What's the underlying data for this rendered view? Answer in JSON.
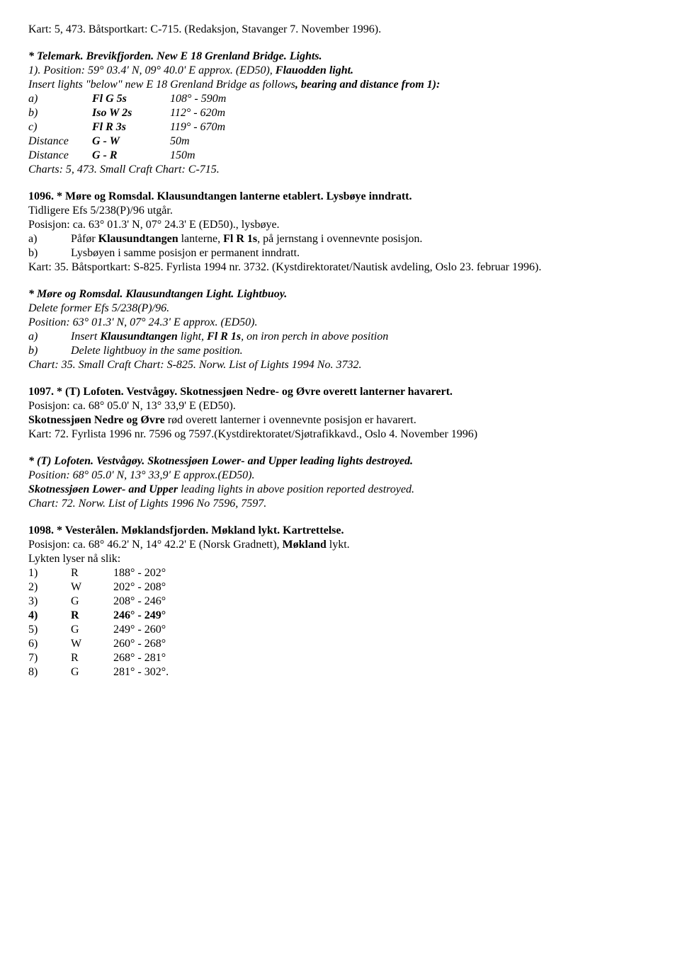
{
  "p1": "Kart: 5, 473. Båtsportkart: C-715. (Redaksjon, Stavanger 7. November 1996).",
  "p2_a": "* Telemark. Brevikfjorden. New E 18 Grenland Bridge. Lights.",
  "p2_b": "1). Position: 59° 03.4' N, 09° 40.0' E approx. (ED50), ",
  "p2_c": "Flauodden light.",
  "p2_d": "Insert lights \"below\" new E 18 Grenland Bridge as follows",
  "p2_e": ", bearing and distance from 1):",
  "t1": {
    "r1": {
      "a": "a)",
      "b": "Fl G 5s",
      "c": "108° - 590m"
    },
    "r2": {
      "a": "b)",
      "b": "Iso W 2s",
      "c": "112° - 620m"
    },
    "r3": {
      "a": "c)",
      "b": "Fl R 3s",
      "c": "119° - 670m"
    },
    "r4": {
      "a": "Distance",
      "b": "G - W",
      "c": "50m"
    },
    "r5": {
      "a": "Distance",
      "b": "G - R",
      "c": "150m"
    }
  },
  "p2_f": "Charts: 5, 473. Small Craft Chart: C-715.",
  "p3_a": "1096. * Møre og Romsdal. Klausundtangen lanterne etablert. Lysbøye inndratt.",
  "p3_b": "Tidligere Efs 5/238(P)/96 utgår.",
  "p3_c": "Posisjon: ca. 63° 01.3' N, 07° 24.3' E (ED50)., lysbøye.",
  "p3_d_a": "a)",
  "p3_d_b1": "Påfør ",
  "p3_d_b2": "Klausundtangen",
  "p3_d_b3": " lanterne, ",
  "p3_d_b4": "Fl R 1s",
  "p3_d_b5": ", på jernstang i ovennevnte posisjon.",
  "p3_e_a": "b)",
  "p3_e_b": "Lysbøyen i samme posisjon er permanent inndratt.",
  "p3_f": "Kart: 35. Båtsportkart: S-825. Fyrlista 1994 nr. 3732. (Kystdirektoratet/Nautisk avdeling, Oslo 23. februar 1996).",
  "p4_a": "* Møre og Romsdal. Klausundtangen Light. Lightbuoy.",
  "p4_b": "Delete former Efs 5/238(P)/96.",
  "p4_c": "Position: 63° 01.3' N, 07° 24.3' E approx. (ED50).",
  "p4_d_a": "a)",
  "p4_d_b1": "Insert ",
  "p4_d_b2": "Klausundtangen",
  "p4_d_b3": " light, ",
  "p4_d_b4": "Fl R 1s",
  "p4_d_b5": ",  on iron perch in above position",
  "p4_e_a": "b)",
  "p4_e_b": "Delete lightbuoy in the same position.",
  "p4_f": "Chart: 35. Small Craft Chart: S-825. Norw. List of Lights 1994 No. 3732.",
  "p5_a": " 1097. * (T) Lofoten. Vestvågøy. Skotnessjøen Nedre- og Øvre overett lanterner havarert.",
  "p5_b": " Posisjon: ca. 68° 05.0' N, 13° 33,9' E (ED50).",
  "p5_c1": " ",
  "p5_c2": "Skotnessjøen Nedre og Øvre",
  "p5_c3": " rød overett lanterner i ovennevnte posisjon er havarert.",
  "p5_d": " Kart: 72. Fyrlista 1996 nr. 7596 og 7597.(Kystdirektoratet/Sjøtrafikkavd., Oslo 4. November 1996)",
  "p6_a": "* (T) Lofoten. Vestvågøy. Skotnessjøen Lower- and Upper leading lights destroyed.",
  "p6_b": " Position: 68° 05.0' N, 13° 33,9' E approx.(ED50).",
  "p6_c1": " ",
  "p6_c2": "Skotnessjøen Lower- and Upper",
  "p6_c3": " leading lights in above position reported destroyed.",
  "p6_d": " Chart: 72. Norw. List of Lights 1996 No 7596, 7597.",
  "p7_a": "1098. * Vesterålen. Møklandsfjorden. Møkland lykt. Kartrettelse.",
  "p7_b1": "Posisjon: ca. 68° 46.2' N, 14° 42.2' E (Norsk Gradnett), ",
  "p7_b2": "Møkland",
  "p7_b3": " lykt.",
  "p7_c": "Lykten lyser nå slik:",
  "t2": {
    "r1": {
      "a": "1)",
      "b": "R",
      "c": "188° - 202°"
    },
    "r2": {
      "a": "2)",
      "b": "W",
      "c": "202° - 208°"
    },
    "r3": {
      "a": "3)",
      "b": "G",
      "c": "208° - 246°"
    },
    "r4": {
      "a": "4)",
      "b": "R",
      "c": "246° - 249°"
    },
    "r5": {
      "a": "5)",
      "b": "G",
      "c": "249° - 260°"
    },
    "r6": {
      "a": "6)",
      "b": "W",
      "c": "260° - 268°"
    },
    "r7": {
      "a": "7)",
      "b": "R",
      "c": "268° - 281°"
    },
    "r8": {
      "a": "8)",
      "b": "G",
      "c": "281° - 302°."
    }
  }
}
